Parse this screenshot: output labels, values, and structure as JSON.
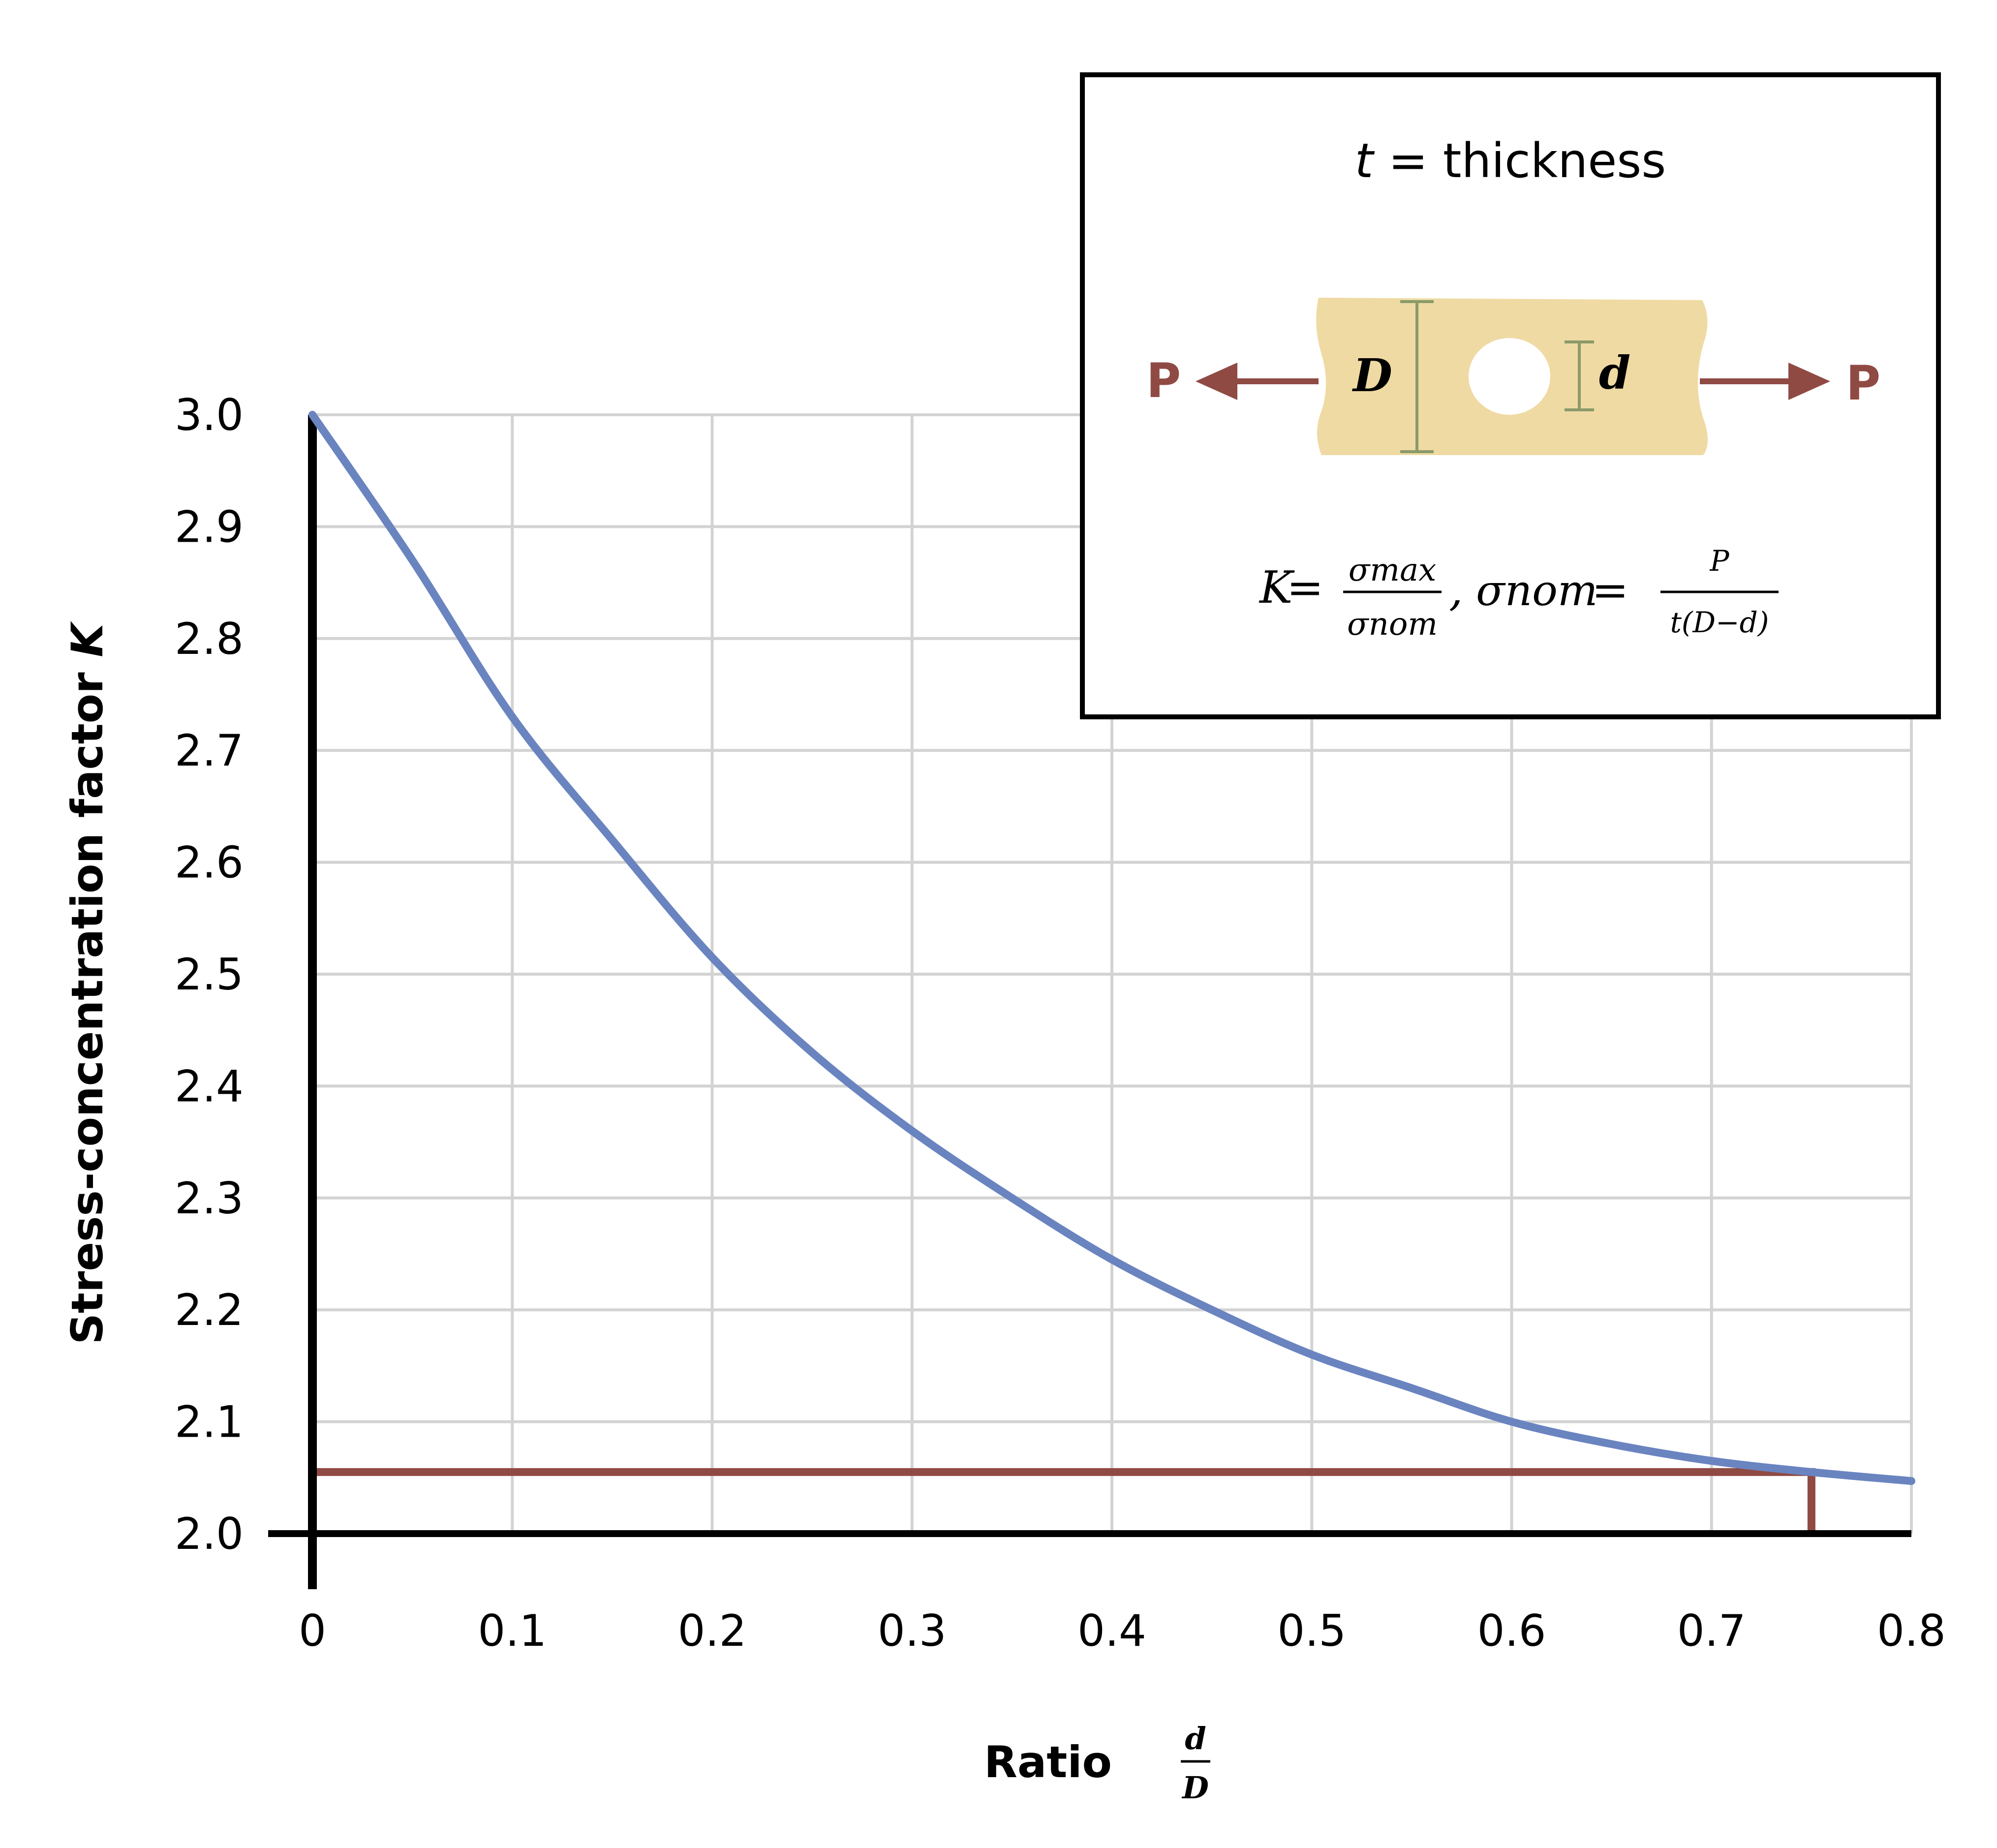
{
  "colors": {
    "curve": "#6a84c0",
    "marker": "#904a44",
    "grid": "#d3d3d3",
    "axis": "#000000",
    "plate": "#efdaa3",
    "dimension": "#8a9a6a"
  },
  "chart_data": {
    "type": "line",
    "ylabel_main": "Stress-concentration factor ",
    "ylabel_var": "K",
    "xlabel_main": "Ratio ",
    "xlabel_frac_num": "d",
    "xlabel_frac_den": "D",
    "xlim": [
      0,
      0.8
    ],
    "ylim": [
      2.0,
      3.0
    ],
    "grid": true,
    "x_ticks": [
      "0",
      "0.1",
      "0.2",
      "0.3",
      "0.4",
      "0.5",
      "0.6",
      "0.7",
      "0.8"
    ],
    "y_ticks": [
      "3.0",
      "2.9",
      "2.8",
      "2.7",
      "2.6",
      "2.5",
      "2.4",
      "2.3",
      "2.2",
      "2.1",
      "2.0"
    ],
    "x_tick_values": [
      0,
      0.1,
      0.2,
      0.3,
      0.4,
      0.5,
      0.6,
      0.7,
      0.8
    ],
    "y_tick_values": [
      3.0,
      2.9,
      2.8,
      2.7,
      2.6,
      2.5,
      2.4,
      2.3,
      2.2,
      2.1,
      2.0
    ],
    "series": [
      {
        "x": [
          0,
          0.05,
          0.1,
          0.15,
          0.2,
          0.25,
          0.3,
          0.35,
          0.4,
          0.45,
          0.5,
          0.55,
          0.6,
          0.65,
          0.7,
          0.75,
          0.8
        ],
        "y": [
          3.0,
          2.87,
          2.73,
          2.62,
          2.515,
          2.43,
          2.36,
          2.3,
          2.245,
          2.2,
          2.16,
          2.13,
          2.1,
          2.08,
          2.065,
          2.055,
          2.047
        ]
      }
    ],
    "marker_point": {
      "x": 0.75,
      "y": 2.055
    },
    "inset": {
      "thickness_var": "t",
      "thickness_text": " = thickness",
      "load_label": "P",
      "big_dim": "D",
      "small_dim": "d",
      "formula": {
        "k": "K",
        "eq": " =",
        "sigma_max": "σmax",
        "sigma_nom": "σnom",
        "comma": ",",
        "sigma_nom_lhs": "σnom",
        "eq2": " =",
        "num": "P",
        "den": "t(D−d)"
      }
    }
  }
}
